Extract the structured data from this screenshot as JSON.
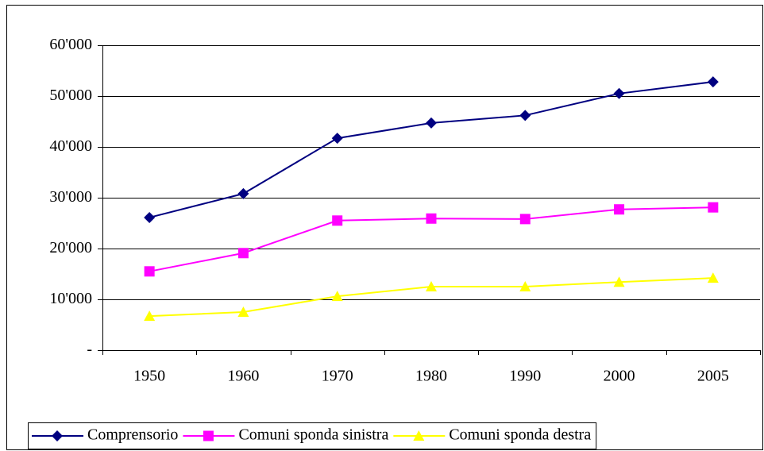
{
  "chart_data": {
    "type": "line",
    "categories": [
      "1950",
      "1960",
      "1970",
      "1980",
      "1990",
      "2000",
      "2005"
    ],
    "series": [
      {
        "name": "Comprensorio",
        "color": "#000080",
        "marker": "diamond",
        "values": [
          26100,
          30800,
          41700,
          44700,
          46200,
          50500,
          52800
        ]
      },
      {
        "name": "Comuni sponda sinistra",
        "color": "#ff00ff",
        "marker": "square",
        "values": [
          15500,
          19100,
          25500,
          25900,
          25800,
          27700,
          28100
        ]
      },
      {
        "name": "Comuni sponda destra",
        "color": "#ffff00",
        "marker": "triangle",
        "values": [
          6700,
          7500,
          10600,
          12500,
          12500,
          13400,
          14200
        ]
      }
    ],
    "ylim": [
      0,
      60000
    ],
    "yticks": [
      {
        "value": 0,
        "label": "-"
      },
      {
        "value": 10000,
        "label": "10'000"
      },
      {
        "value": 20000,
        "label": "20'000"
      },
      {
        "value": 30000,
        "label": "30'000"
      },
      {
        "value": 40000,
        "label": "40'000"
      },
      {
        "value": 50000,
        "label": "50'000"
      },
      {
        "value": 60000,
        "label": "60'000"
      }
    ],
    "grid": true,
    "legend": "bottom"
  }
}
